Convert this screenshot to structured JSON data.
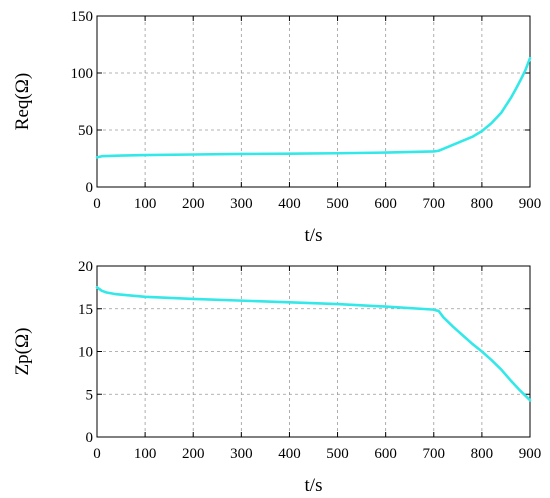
{
  "colors": {
    "series": "#33e8e8",
    "grid": "#9a9a9a",
    "axis": "#000000"
  },
  "chart_data": [
    {
      "type": "line",
      "xlabel": "t/s",
      "ylabel": "Req(Ω)",
      "xlim": [
        0,
        900
      ],
      "ylim": [
        0,
        150
      ],
      "xticks": [
        0,
        100,
        200,
        300,
        400,
        500,
        600,
        700,
        800,
        900
      ],
      "yticks": [
        0,
        50,
        100,
        150
      ],
      "grid": true,
      "series": [
        {
          "x": [
            0,
            10,
            50,
            100,
            200,
            300,
            400,
            500,
            600,
            700,
            710,
            720,
            740,
            760,
            780,
            800,
            820,
            840,
            860,
            870,
            880,
            890,
            900
          ],
          "y": [
            26,
            27,
            27.6,
            28,
            28.5,
            29,
            29.2,
            29.6,
            30.2,
            31.2,
            31.8,
            33.5,
            37,
            40.5,
            44,
            49,
            56,
            65,
            78,
            85.5,
            93.5,
            102,
            113
          ]
        }
      ]
    },
    {
      "type": "line",
      "xlabel": "t/s",
      "ylabel": "Zp(Ω)",
      "xlim": [
        0,
        900
      ],
      "ylim": [
        0,
        20
      ],
      "xticks": [
        0,
        100,
        200,
        300,
        400,
        500,
        600,
        700,
        800,
        900
      ],
      "yticks": [
        0,
        5,
        10,
        15,
        20
      ],
      "grid": true,
      "series": [
        {
          "x": [
            0,
            5,
            10,
            20,
            40,
            60,
            100,
            200,
            300,
            400,
            500,
            600,
            700,
            705,
            710,
            720,
            740,
            760,
            780,
            800,
            820,
            840,
            860,
            880,
            900
          ],
          "y": [
            17.5,
            17.3,
            17.1,
            16.9,
            16.7,
            16.6,
            16.4,
            16.15,
            15.95,
            15.75,
            15.55,
            15.25,
            14.9,
            14.8,
            14.75,
            14.0,
            12.9,
            11.9,
            10.9,
            10.0,
            9.0,
            7.9,
            6.6,
            5.4,
            4.3
          ]
        }
      ]
    }
  ]
}
